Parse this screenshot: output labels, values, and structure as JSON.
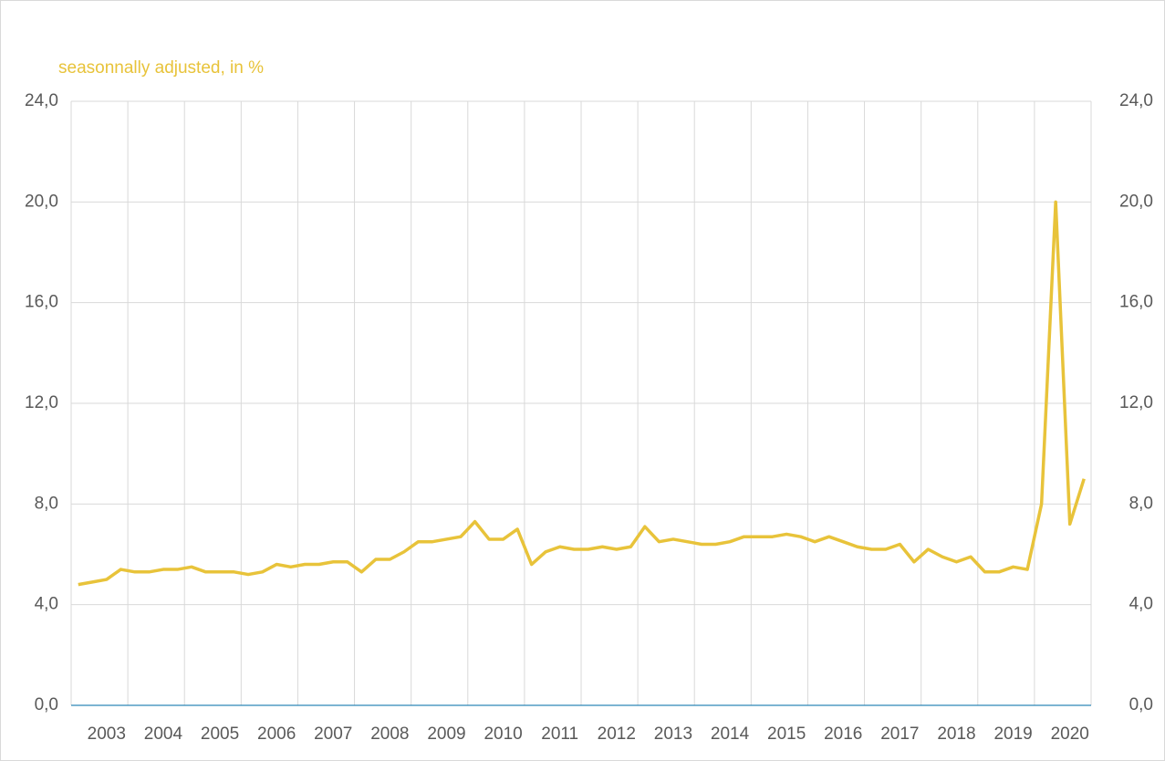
{
  "chart_data": {
    "type": "line",
    "title": "seasonnally adjusted, in %",
    "categories": [
      null,
      null,
      "2003",
      null,
      null,
      null,
      "2004",
      null,
      null,
      null,
      "2005",
      null,
      null,
      null,
      "2006",
      null,
      null,
      null,
      "2007",
      null,
      null,
      null,
      "2008",
      null,
      null,
      null,
      "2009",
      null,
      null,
      null,
      "2010",
      null,
      null,
      null,
      "2011",
      null,
      null,
      null,
      "2012",
      null,
      null,
      null,
      "2013",
      null,
      null,
      null,
      "2014",
      null,
      null,
      null,
      "2015",
      null,
      null,
      null,
      "2016",
      null,
      null,
      null,
      "2017",
      null,
      null,
      null,
      "2018",
      null,
      null,
      null,
      "2019",
      null,
      null,
      null,
      "2020",
      null
    ],
    "series": [
      {
        "name": null,
        "color": "#e8c33a",
        "values": [
          4.8,
          4.9,
          5.0,
          5.4,
          5.3,
          5.3,
          5.4,
          5.4,
          5.5,
          5.3,
          5.3,
          5.3,
          5.2,
          5.3,
          5.6,
          5.5,
          5.6,
          5.6,
          5.7,
          5.7,
          5.3,
          5.8,
          5.8,
          6.1,
          6.5,
          6.5,
          6.6,
          6.7,
          7.3,
          6.6,
          6.6,
          7.0,
          5.6,
          6.1,
          6.3,
          6.2,
          6.2,
          6.3,
          6.2,
          6.3,
          7.1,
          6.5,
          6.6,
          6.5,
          6.4,
          6.4,
          6.5,
          6.7,
          6.7,
          6.7,
          6.8,
          6.7,
          6.5,
          6.7,
          6.5,
          6.3,
          6.2,
          6.2,
          6.4,
          5.7,
          6.2,
          5.9,
          5.7,
          5.9,
          5.3,
          5.3,
          5.5,
          5.4,
          8.0,
          20.0,
          7.2,
          9.0
        ]
      }
    ],
    "ylim": [
      0,
      24
    ],
    "yticks": [
      {
        "value": 0,
        "label": "0,0"
      },
      {
        "value": 4,
        "label": "4,0"
      },
      {
        "value": 8,
        "label": "8,0"
      },
      {
        "value": 12,
        "label": "12,0"
      },
      {
        "value": 16,
        "label": "16,0"
      },
      {
        "value": 20,
        "label": "20,0"
      },
      {
        "value": 24,
        "label": "24,0"
      }
    ],
    "y2lim": [
      0,
      24
    ],
    "y2ticks": [
      {
        "value": 0,
        "label": "0,0"
      },
      {
        "value": 4,
        "label": "4,0"
      },
      {
        "value": 8,
        "label": "8,0"
      },
      {
        "value": 12,
        "label": "12,0"
      },
      {
        "value": 16,
        "label": "16,0"
      },
      {
        "value": 20,
        "label": "20,0"
      },
      {
        "value": 24,
        "label": "24,0"
      }
    ],
    "grid": true
  }
}
